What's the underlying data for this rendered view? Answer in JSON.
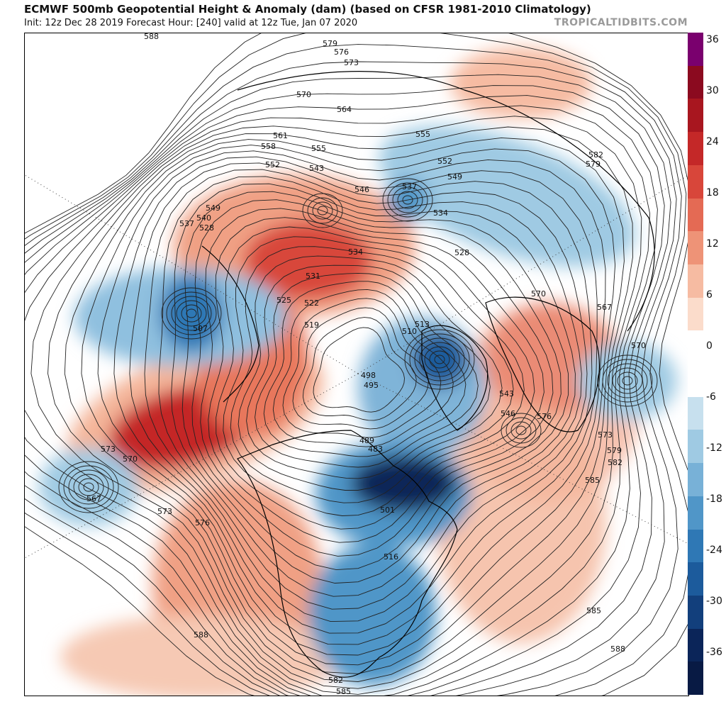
{
  "header": {
    "title": "ECMWF 500mb Geopotential Height & Anomaly (dam) (based on CFSR 1981-2010 Climatology)",
    "subtitle": "Init: 12z Dec 28 2019   Forecast Hour: [240]   valid at 12z Tue, Jan 07 2020",
    "watermark": "TROPICALTIDBITS.COM"
  },
  "colorbar": {
    "unit": "dam",
    "ticks": [
      "36",
      "30",
      "24",
      "18",
      "12",
      "6",
      "0",
      "-6",
      "-12",
      "-18",
      "-24",
      "-30",
      "-36"
    ],
    "colors": [
      "#7a006e",
      "#8b0a1f",
      "#a8161f",
      "#c42828",
      "#d8463a",
      "#e46a54",
      "#ee9377",
      "#f6bba2",
      "#fbdccb",
      "#ffffff",
      "#ffffff",
      "#c7e0ee",
      "#9fcae3",
      "#78b1d7",
      "#5096c8",
      "#2f78b5",
      "#1c5b9c",
      "#123f7c",
      "#0b2559",
      "#081a44"
    ]
  },
  "map": {
    "contour_labels": [
      "588",
      "579",
      "576",
      "573",
      "570",
      "564",
      "561",
      "558",
      "555",
      "552",
      "549",
      "546",
      "543",
      "540",
      "537",
      "534",
      "531",
      "528",
      "525",
      "522",
      "519",
      "513",
      "510",
      "507",
      "498",
      "495",
      "489",
      "483",
      "501",
      "516",
      "567",
      "585",
      "582",
      "588",
      "585",
      "588",
      "585",
      "582",
      "579",
      "573",
      "570",
      "573",
      "576",
      "570",
      "567",
      "555",
      "552",
      "549",
      "537",
      "534",
      "528",
      "543",
      "546",
      "576",
      "582",
      "579",
      "570",
      "573"
    ],
    "anomaly_blobs": [
      {
        "sign": "neg",
        "strength": "strong",
        "region": "Hudson Bay / eastern Canada"
      },
      {
        "sign": "neg",
        "strength": "strong",
        "region": "Alaska / Bering Sea"
      },
      {
        "sign": "neg",
        "strength": "moderate",
        "region": "Greenland / Baffin"
      },
      {
        "sign": "neg",
        "strength": "moderate",
        "region": "eastern United States"
      },
      {
        "sign": "neg",
        "strength": "moderate",
        "region": "Siberia / Russia"
      },
      {
        "sign": "neg",
        "strength": "weak",
        "region": "east of Hawaii"
      },
      {
        "sign": "neg",
        "strength": "weak",
        "region": "Middle East"
      },
      {
        "sign": "pos",
        "strength": "strong",
        "region": "Gulf of Alaska / NE Pacific"
      },
      {
        "sign": "pos",
        "strength": "strong",
        "region": "Scandinavia / NW Europe"
      },
      {
        "sign": "pos",
        "strength": "moderate",
        "region": "Arctic Ocean / Laptev Sea"
      },
      {
        "sign": "pos",
        "strength": "moderate",
        "region": "Western US / Mexico"
      },
      {
        "sign": "pos",
        "strength": "weak",
        "region": "North Atlantic"
      },
      {
        "sign": "pos",
        "strength": "weak",
        "region": "Eastern Asia"
      }
    ]
  }
}
